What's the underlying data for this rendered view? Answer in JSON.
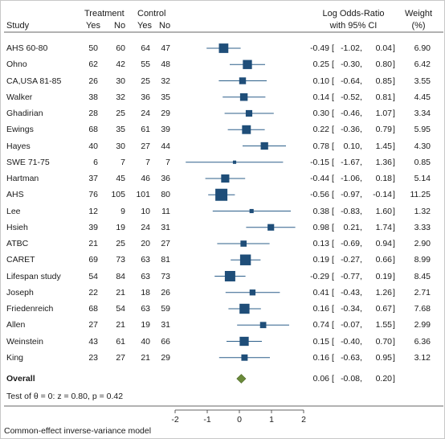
{
  "chart_data": {
    "type": "forest",
    "headers": {
      "study": "Study",
      "treatment": "Treatment",
      "control": "Control",
      "yes": "Yes",
      "no": "No",
      "effect_line1": "Log Odds-Ratio",
      "effect_line2": "with 95% CI",
      "weight_line1": "Weight",
      "weight_line2": "(%)"
    },
    "studies": [
      {
        "name": "AHS 60-80",
        "t_yes": "50",
        "t_no": "60",
        "c_yes": "64",
        "c_no": "47",
        "est": -0.49,
        "lo": -1.02,
        "hi": 0.04,
        "est_s": "-0.49",
        "lo_s": "-1.02",
        "hi_s": "0.04",
        "weight": 6.9,
        "weight_s": "6.90"
      },
      {
        "name": "Ohno",
        "t_yes": "62",
        "t_no": "42",
        "c_yes": "55",
        "c_no": "48",
        "est": 0.25,
        "lo": -0.3,
        "hi": 0.8,
        "est_s": "0.25",
        "lo_s": "-0.30",
        "hi_s": "0.80",
        "weight": 6.42,
        "weight_s": "6.42"
      },
      {
        "name": "CA,USA 81-85",
        "t_yes": "26",
        "t_no": "30",
        "c_yes": "25",
        "c_no": "32",
        "est": 0.1,
        "lo": -0.64,
        "hi": 0.85,
        "est_s": "0.10",
        "lo_s": "-0.64",
        "hi_s": "0.85",
        "weight": 3.55,
        "weight_s": "3.55"
      },
      {
        "name": "Walker",
        "t_yes": "38",
        "t_no": "32",
        "c_yes": "36",
        "c_no": "35",
        "est": 0.14,
        "lo": -0.52,
        "hi": 0.81,
        "est_s": "0.14",
        "lo_s": "-0.52",
        "hi_s": "0.81",
        "weight": 4.45,
        "weight_s": "4.45"
      },
      {
        "name": "Ghadirian",
        "t_yes": "28",
        "t_no": "25",
        "c_yes": "24",
        "c_no": "29",
        "est": 0.3,
        "lo": -0.46,
        "hi": 1.07,
        "est_s": "0.30",
        "lo_s": "-0.46",
        "hi_s": "1.07",
        "weight": 3.34,
        "weight_s": "3.34"
      },
      {
        "name": "Ewings",
        "t_yes": "68",
        "t_no": "35",
        "c_yes": "61",
        "c_no": "39",
        "est": 0.22,
        "lo": -0.36,
        "hi": 0.79,
        "est_s": "0.22",
        "lo_s": "-0.36",
        "hi_s": "0.79",
        "weight": 5.95,
        "weight_s": "5.95"
      },
      {
        "name": "Hayes",
        "t_yes": "40",
        "t_no": "30",
        "c_yes": "27",
        "c_no": "44",
        "est": 0.78,
        "lo": 0.1,
        "hi": 1.45,
        "est_s": "0.78",
        "lo_s": "0.10",
        "hi_s": "1.45",
        "weight": 4.3,
        "weight_s": "4.30"
      },
      {
        "name": "SWE 71-75",
        "t_yes": "6",
        "t_no": "7",
        "c_yes": "7",
        "c_no": "7",
        "est": -0.15,
        "lo": -1.67,
        "hi": 1.36,
        "est_s": "-0.15",
        "lo_s": "-1.67",
        "hi_s": "1.36",
        "weight": 0.85,
        "weight_s": "0.85"
      },
      {
        "name": "Hartman",
        "t_yes": "37",
        "t_no": "45",
        "c_yes": "46",
        "c_no": "36",
        "est": -0.44,
        "lo": -1.06,
        "hi": 0.18,
        "est_s": "-0.44",
        "lo_s": "-1.06",
        "hi_s": "0.18",
        "weight": 5.14,
        "weight_s": "5.14"
      },
      {
        "name": "AHS",
        "t_yes": "76",
        "t_no": "105",
        "c_yes": "101",
        "c_no": "80",
        "est": -0.56,
        "lo": -0.97,
        "hi": -0.14,
        "est_s": "-0.56",
        "lo_s": "-0.97",
        "hi_s": "-0.14",
        "weight": 11.25,
        "weight_s": "11.25"
      },
      {
        "name": "Lee",
        "t_yes": "12",
        "t_no": "9",
        "c_yes": "10",
        "c_no": "11",
        "est": 0.38,
        "lo": -0.83,
        "hi": 1.6,
        "est_s": "0.38",
        "lo_s": "-0.83",
        "hi_s": "1.60",
        "weight": 1.32,
        "weight_s": "1.32"
      },
      {
        "name": "Hsieh",
        "t_yes": "39",
        "t_no": "19",
        "c_yes": "24",
        "c_no": "31",
        "est": 0.98,
        "lo": 0.21,
        "hi": 1.74,
        "est_s": "0.98",
        "lo_s": "0.21",
        "hi_s": "1.74",
        "weight": 3.33,
        "weight_s": "3.33"
      },
      {
        "name": "ATBC",
        "t_yes": "21",
        "t_no": "25",
        "c_yes": "20",
        "c_no": "27",
        "est": 0.13,
        "lo": -0.69,
        "hi": 0.94,
        "est_s": "0.13",
        "lo_s": "-0.69",
        "hi_s": "0.94",
        "weight": 2.9,
        "weight_s": "2.90"
      },
      {
        "name": "CARET",
        "t_yes": "69",
        "t_no": "73",
        "c_yes": "63",
        "c_no": "81",
        "est": 0.19,
        "lo": -0.27,
        "hi": 0.66,
        "est_s": "0.19",
        "lo_s": "-0.27",
        "hi_s": "0.66",
        "weight": 8.99,
        "weight_s": "8.99"
      },
      {
        "name": "Lifespan study",
        "t_yes": "54",
        "t_no": "84",
        "c_yes": "63",
        "c_no": "73",
        "est": -0.29,
        "lo": -0.77,
        "hi": 0.19,
        "est_s": "-0.29",
        "lo_s": "-0.77",
        "hi_s": "0.19",
        "weight": 8.45,
        "weight_s": "8.45"
      },
      {
        "name": "Joseph",
        "t_yes": "22",
        "t_no": "21",
        "c_yes": "18",
        "c_no": "26",
        "est": 0.41,
        "lo": -0.43,
        "hi": 1.26,
        "est_s": "0.41",
        "lo_s": "-0.43",
        "hi_s": "1.26",
        "weight": 2.71,
        "weight_s": "2.71"
      },
      {
        "name": "Friedenreich",
        "t_yes": "68",
        "t_no": "54",
        "c_yes": "63",
        "c_no": "59",
        "est": 0.16,
        "lo": -0.34,
        "hi": 0.67,
        "est_s": "0.16",
        "lo_s": "-0.34",
        "hi_s": "0.67",
        "weight": 7.68,
        "weight_s": "7.68"
      },
      {
        "name": "Allen",
        "t_yes": "27",
        "t_no": "21",
        "c_yes": "19",
        "c_no": "31",
        "est": 0.74,
        "lo": -0.07,
        "hi": 1.55,
        "est_s": "0.74",
        "lo_s": "-0.07",
        "hi_s": "1.55",
        "weight": 2.99,
        "weight_s": "2.99"
      },
      {
        "name": "Weinstein",
        "t_yes": "43",
        "t_no": "61",
        "c_yes": "40",
        "c_no": "66",
        "est": 0.15,
        "lo": -0.4,
        "hi": 0.7,
        "est_s": "0.15",
        "lo_s": "-0.40",
        "hi_s": "0.70",
        "weight": 6.36,
        "weight_s": "6.36"
      },
      {
        "name": "King",
        "t_yes": "23",
        "t_no": "27",
        "c_yes": "21",
        "c_no": "29",
        "est": 0.16,
        "lo": -0.63,
        "hi": 0.95,
        "est_s": "0.16",
        "lo_s": "-0.63",
        "hi_s": "0.95",
        "weight": 3.12,
        "weight_s": "3.12"
      }
    ],
    "overall": {
      "label": "Overall",
      "est": 0.06,
      "lo": -0.08,
      "hi": 0.2,
      "est_s": "0.06",
      "lo_s": "-0.08",
      "hi_s": "0.20"
    },
    "test_text": "Test of θ = 0: z = 0.80, p = 0.42",
    "model_text": "Common-effect inverse-variance model",
    "x_ticks": [
      -2,
      -1,
      0,
      1,
      2
    ],
    "xlim": [
      -2,
      2
    ],
    "reference_line": 0,
    "colors": {
      "marker": "#1f4e79",
      "ci_line": "#2c5f8a",
      "overall_diamond": "#6a8a3a",
      "text": "#1a1a1a"
    }
  }
}
